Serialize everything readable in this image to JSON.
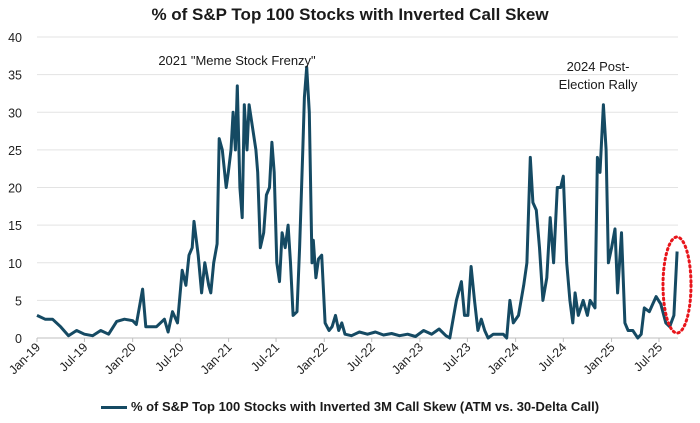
{
  "chart_data": {
    "type": "line",
    "title": "% of S&P Top 100 Stocks with Inverted Call Skew",
    "xlabel": "",
    "ylabel": "",
    "ylim": [
      0,
      40
    ],
    "yticks": [
      "0",
      "5",
      "10",
      "15",
      "20",
      "25",
      "30",
      "35",
      "40"
    ],
    "xticks": [
      "Jan-19",
      "Jul-19",
      "Jan-20",
      "Jul-20",
      "Jan-21",
      "Jul-21",
      "Jan-22",
      "Jul-22",
      "Jan-23",
      "Jul-23",
      "Jan-24",
      "Jul-24",
      "Jan-25",
      "Jul-25"
    ],
    "xtick_dates": [
      "2019-01-01",
      "2019-07-01",
      "2020-01-01",
      "2020-07-01",
      "2021-01-01",
      "2021-07-01",
      "2022-01-01",
      "2022-07-01",
      "2023-01-01",
      "2023-07-01",
      "2024-01-01",
      "2024-07-01",
      "2025-01-01",
      "2025-07-01"
    ],
    "grid": "horizontal",
    "legend_position": "bottom",
    "line_color": "#154a63",
    "highlight_color": "#e8151b",
    "annotations": [
      {
        "text": "2021 \"Meme Stock Frenzy\""
      },
      {
        "text": "2024 Post-",
        "text2": "Election Rally"
      }
    ],
    "series": [
      {
        "name": "% of S&P Top 100 Stocks with Inverted 3M Call Skew (ATM vs. 30-Delta Call)",
        "x": [
          "2019-01-01",
          "2019-02-01",
          "2019-03-01",
          "2019-04-01",
          "2019-05-01",
          "2019-06-01",
          "2019-07-01",
          "2019-08-01",
          "2019-09-01",
          "2019-10-01",
          "2019-11-01",
          "2019-12-01",
          "2020-01-01",
          "2020-01-15",
          "2020-02-08",
          "2020-02-20",
          "2020-03-01",
          "2020-04-01",
          "2020-05-01",
          "2020-05-15",
          "2020-06-01",
          "2020-06-20",
          "2020-07-08",
          "2020-07-22",
          "2020-08-03",
          "2020-08-15",
          "2020-08-22",
          "2020-09-07",
          "2020-09-20",
          "2020-10-02",
          "2020-10-17",
          "2020-10-25",
          "2020-11-05",
          "2020-11-18",
          "2020-11-26",
          "2020-12-08",
          "2020-12-23",
          "2020-12-31",
          "2021-01-10",
          "2021-01-18",
          "2021-01-27",
          "2021-02-03",
          "2021-02-13",
          "2021-02-22",
          "2021-03-02",
          "2021-03-12",
          "2021-03-20",
          "2021-04-02",
          "2021-04-15",
          "2021-04-22",
          "2021-05-02",
          "2021-05-15",
          "2021-05-25",
          "2021-06-06",
          "2021-06-15",
          "2021-06-24",
          "2021-07-04",
          "2021-07-14",
          "2021-07-24",
          "2021-08-05",
          "2021-08-16",
          "2021-08-25",
          "2021-09-04",
          "2021-09-19",
          "2021-09-29",
          "2021-10-11",
          "2021-10-17",
          "2021-10-26",
          "2021-11-05",
          "2021-11-15",
          "2021-11-20",
          "2021-11-30",
          "2021-12-10",
          "2021-12-22",
          "2022-01-04",
          "2022-01-19",
          "2022-01-31",
          "2022-02-13",
          "2022-02-25",
          "2022-03-09",
          "2022-03-21",
          "2022-04-15",
          "2022-05-15",
          "2022-06-15",
          "2022-07-15",
          "2022-08-15",
          "2022-09-15",
          "2022-10-15",
          "2022-11-15",
          "2022-12-15",
          "2023-01-15",
          "2023-02-15",
          "2023-03-15",
          "2023-04-10",
          "2023-04-25",
          "2023-05-20",
          "2023-06-08",
          "2023-06-20",
          "2023-07-03",
          "2023-07-15",
          "2023-07-28",
          "2023-08-10",
          "2023-08-23",
          "2023-09-05",
          "2023-09-18",
          "2023-10-08",
          "2023-11-15",
          "2023-11-28",
          "2023-12-10",
          "2023-12-23",
          "2024-01-12",
          "2024-02-01",
          "2024-02-13",
          "2024-02-26",
          "2024-03-07",
          "2024-03-20",
          "2024-04-01",
          "2024-04-14",
          "2024-04-29",
          "2024-05-12",
          "2024-05-25",
          "2024-06-08",
          "2024-06-21",
          "2024-07-01",
          "2024-07-14",
          "2024-07-26",
          "2024-08-06",
          "2024-08-15",
          "2024-08-27",
          "2024-09-15",
          "2024-10-01",
          "2024-10-11",
          "2024-10-30",
          "2024-11-08",
          "2024-11-18",
          "2024-12-01",
          "2024-12-11",
          "2024-12-20",
          "2025-01-01",
          "2025-01-14",
          "2025-01-24",
          "2025-02-08",
          "2025-02-21",
          "2025-03-05",
          "2025-03-23",
          "2025-04-11",
          "2025-04-24",
          "2025-05-06",
          "2025-05-25",
          "2025-06-07",
          "2025-06-20",
          "2025-07-08",
          "2025-07-27",
          "2025-08-11",
          "2025-08-27",
          "2025-09-08"
        ],
        "values": [
          3,
          2.5,
          2.5,
          1.5,
          0.3,
          1,
          0.5,
          0.3,
          1,
          0.5,
          2.2,
          2.5,
          2.3,
          1.8,
          6.5,
          1.5,
          1.5,
          1.5,
          2.5,
          0.8,
          3.5,
          2,
          9,
          7,
          11,
          12,
          15.5,
          11,
          6,
          10,
          7,
          6,
          10,
          12.5,
          26.5,
          25,
          20,
          22,
          25,
          30,
          25,
          33.5,
          20,
          16,
          31,
          25,
          31,
          28,
          25,
          22,
          12,
          14,
          19,
          20,
          26,
          22,
          10,
          7.5,
          14,
          12,
          15,
          10,
          3,
          3.5,
          12,
          25,
          32,
          36,
          30,
          10,
          13,
          8,
          10.5,
          11,
          2,
          1,
          1.5,
          3,
          1,
          2,
          0.5,
          0.3,
          0.8,
          0.5,
          0.8,
          0.4,
          0.6,
          0.3,
          0.5,
          0.2,
          1,
          0.5,
          1.2,
          0.3,
          0,
          5,
          7.5,
          3,
          3,
          9.5,
          5,
          1,
          2.5,
          1,
          0,
          0.5,
          0.5,
          0,
          5,
          2,
          3,
          7,
          10,
          24,
          18,
          17,
          12,
          5,
          8,
          16,
          10,
          20,
          20,
          21.5,
          10,
          5,
          2,
          6,
          3,
          5,
          3,
          5,
          4,
          24,
          22,
          31,
          25,
          10,
          12,
          14.5,
          6,
          14,
          2,
          1,
          1,
          0,
          0.5,
          4,
          3.5,
          4.5,
          5.5,
          4.5,
          2,
          1.5,
          3,
          11.5
        ]
      }
    ]
  }
}
